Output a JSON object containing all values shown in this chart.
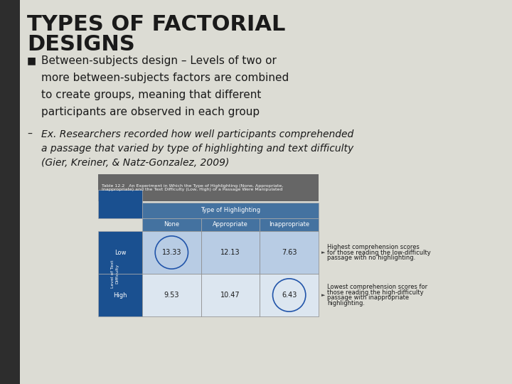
{
  "bg_color": "#dcdcd4",
  "left_bar_color": "#2d2d2d",
  "title_line1": "TYPES OF FACTORIAL",
  "title_line2": "DESIGNS",
  "title_color": "#1a1a1a",
  "title_fontsize": 22,
  "bullet_symbol": "■",
  "bullet_fontsize": 11,
  "bullet_color": "#1a1a1a",
  "bullet_lines": [
    "Between-subjects design – Levels of two or",
    "more between-subjects factors are combined",
    "to create groups, meaning that different",
    "participants are observed in each group"
  ],
  "example_fontsize": 10,
  "example_color": "#1a1a1a",
  "example_lines": [
    "Ex. Researchers recorded how well participants comprehended",
    "a passage that varied by type of highlighting and text difficulty",
    "(Gier, Kreiner, & Natz-Gonzalez, 2009)"
  ],
  "table_header_bg": "#4472a0",
  "table_left_col_bg": "#1a5090",
  "table_caption_bg": "#666666",
  "table_caption_text": "#ffffff",
  "table_row_bg_light": "#b8cce4",
  "table_row_bg_alt": "#dce6f0",
  "table_caption": "Table 12.2   An Experiment in Which the Type of Highlighting (None, Appropriate,\nInappropriate) and the Text Difficulty (Low, High) of a Passage Were Manipulated",
  "col_headers": [
    "None",
    "Appropriate",
    "Inappropriate"
  ],
  "row_headers": [
    "Low",
    "High"
  ],
  "data_values": [
    [
      "13.33",
      "12.13",
      "7.63"
    ],
    [
      "9.53",
      "10.47",
      "6.43"
    ]
  ],
  "circled_cells": [
    [
      0,
      0
    ],
    [
      1,
      2
    ]
  ],
  "note1_lines": [
    "Highest comprehension scores",
    "for those reading the low-difficulty",
    "passage with no highlighting."
  ],
  "note2_lines": [
    "Lowest comprehension scores for",
    "those reading the high-difficulty",
    "passage with inappropriate",
    "highlighting."
  ],
  "note_fontsize": 6.0,
  "note_color": "#1a1a1a"
}
